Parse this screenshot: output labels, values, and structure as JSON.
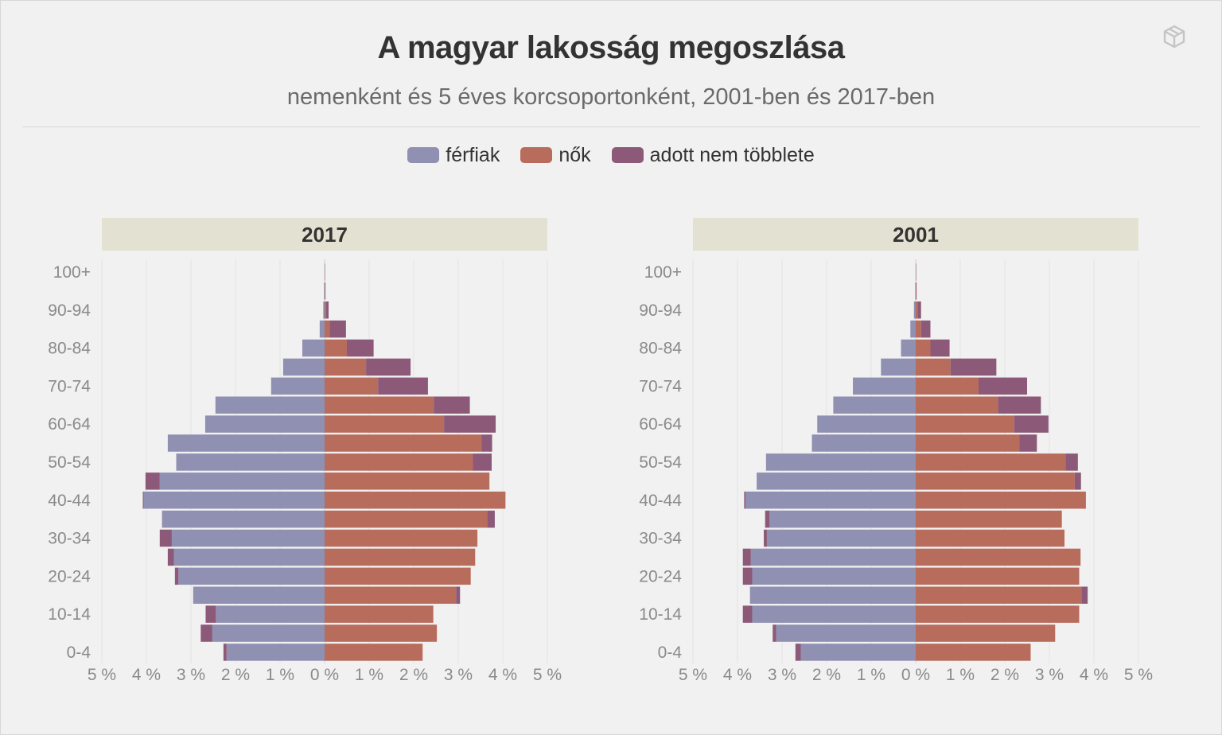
{
  "title": "A magyar lakosság megoszlása",
  "subtitle": "nemenként és 5 éves korcsoportonként, 2001-ben és 2017-ben",
  "legend": [
    {
      "label": "férfiak",
      "color": "#9090b2"
    },
    {
      "label": "nők",
      "color": "#b86c5c"
    },
    {
      "label": "adott nem többlete",
      "color": "#8c5a78"
    }
  ],
  "logo_icon": "cube-logo-icon",
  "chart_data": [
    {
      "type": "bar",
      "panel": "2017",
      "orientation": "horizontal-pyramid",
      "categories": [
        "0-4",
        "5-9",
        "10-14",
        "15-19",
        "20-24",
        "25-29",
        "30-34",
        "35-39",
        "40-44",
        "45-49",
        "50-54",
        "55-59",
        "60-64",
        "65-69",
        "70-74",
        "75-79",
        "80-84",
        "85-89",
        "90-94",
        "95-99",
        "100+"
      ],
      "category_labels_shown": [
        "0-4",
        "10-14",
        "20-24",
        "30-34",
        "40-44",
        "50-54",
        "60-64",
        "70-74",
        "80-84",
        "90-94",
        "100+"
      ],
      "series": [
        {
          "name": "férfiak",
          "values": [
            2.27,
            2.78,
            2.67,
            2.95,
            3.36,
            3.52,
            3.7,
            3.65,
            4.08,
            4.02,
            3.33,
            3.52,
            2.68,
            2.45,
            1.2,
            0.93,
            0.5,
            0.11,
            0.03,
            0.01,
            0.0
          ]
        },
        {
          "name": "nők",
          "values": [
            2.2,
            2.52,
            2.44,
            3.04,
            3.28,
            3.38,
            3.43,
            3.82,
            4.06,
            3.7,
            3.75,
            3.76,
            3.84,
            3.26,
            2.32,
            1.93,
            1.1,
            0.48,
            0.09,
            0.02,
            0.01
          ]
        }
      ],
      "xlim": [
        -5,
        5
      ],
      "xticks": [
        "5 %",
        "4 %",
        "3 %",
        "2 %",
        "1 %",
        "0 %",
        "1 %",
        "2 %",
        "3 %",
        "4 %",
        "5 %"
      ]
    },
    {
      "type": "bar",
      "panel": "2001",
      "orientation": "horizontal-pyramid",
      "categories": [
        "0-4",
        "5-9",
        "10-14",
        "15-19",
        "20-24",
        "25-29",
        "30-34",
        "35-39",
        "40-44",
        "45-49",
        "50-54",
        "55-59",
        "60-64",
        "65-69",
        "70-74",
        "75-79",
        "80-84",
        "85-89",
        "90-94",
        "95-99",
        "100+"
      ],
      "category_labels_shown": [
        "0-4",
        "10-14",
        "20-24",
        "30-34",
        "40-44",
        "50-54",
        "60-64",
        "70-74",
        "80-84",
        "90-94",
        "100+"
      ],
      "series": [
        {
          "name": "férfiak",
          "values": [
            2.7,
            3.21,
            3.88,
            3.72,
            3.88,
            3.88,
            3.41,
            3.38,
            3.85,
            3.57,
            3.36,
            2.33,
            2.21,
            1.85,
            1.41,
            0.78,
            0.33,
            0.12,
            0.04,
            0.01,
            0.0
          ]
        },
        {
          "name": "nők",
          "values": [
            2.58,
            3.13,
            3.67,
            3.86,
            3.67,
            3.7,
            3.34,
            3.28,
            3.82,
            3.71,
            3.64,
            2.72,
            2.98,
            2.81,
            2.5,
            1.81,
            0.76,
            0.33,
            0.12,
            0.02,
            0.01
          ]
        }
      ],
      "xlim": [
        -5,
        5
      ],
      "xticks": [
        "5 %",
        "4 %",
        "3 %",
        "2 %",
        "1 %",
        "0 %",
        "1 %",
        "2 %",
        "3 %",
        "4 %",
        "5 %"
      ]
    }
  ]
}
